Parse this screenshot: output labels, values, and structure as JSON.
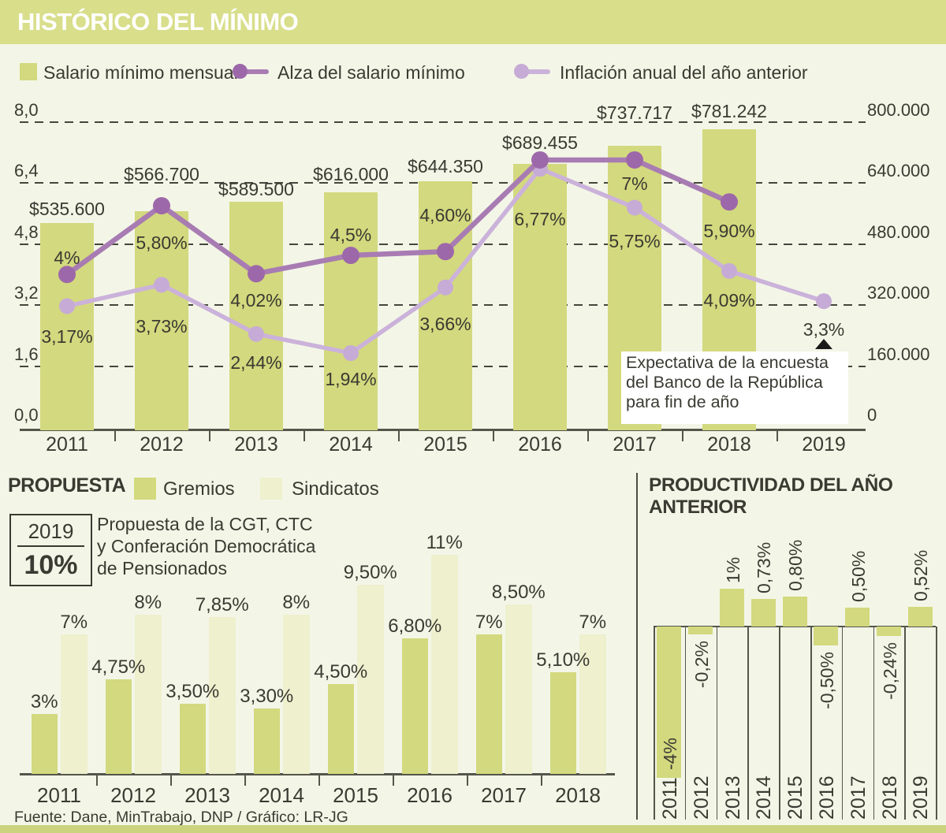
{
  "header": {
    "title": "HISTÓRICO DEL MÍNIMO"
  },
  "legend": {
    "salario": "Salario mínimo mensual",
    "alza": "Alza del salario mínimo",
    "inflacion": "Inflación anual del año anterior"
  },
  "colors": {
    "bar_green": "#d3d97e",
    "bar_pale": "#eef0ce",
    "header_bg": "#d8de8a",
    "background": "#f3f6e7",
    "alza_line": "#a87cb3",
    "alza_dot": "#9d68a9",
    "inflacion_line": "#cbb2da",
    "inflacion_dot": "#c6abd6",
    "text": "#3a3a32",
    "axis": "#55554b",
    "annotation_bg": "#ffffff",
    "footer_bar": "#cbd47d"
  },
  "propuesta": {
    "title": "PROPUESTA",
    "legend_gremios": "Gremios",
    "legend_sindicatos": "Sindicatos",
    "box_year": "2019",
    "box_pct": "10%",
    "note_lines": [
      "Propuesta de la CGT, CTC",
      "y Conferación Democrática",
      "de Pensionados"
    ]
  },
  "productividad": {
    "title_lines": [
      "PRODUCTIVIDAD DEL AÑO",
      "ANTERIOR"
    ]
  },
  "footer": {
    "source": "Fuente: Dane, MinTrabajo, DNP / Gráfico: LR-JG"
  },
  "chart_data": [
    {
      "id": "historico",
      "type": "bar",
      "title": "HISTÓRICO DEL MÍNIMO",
      "categories": [
        "2011",
        "2012",
        "2013",
        "2014",
        "2015",
        "2016",
        "2017",
        "2018",
        "2019"
      ],
      "legend_position": "top",
      "grid": true,
      "left_axis": {
        "values": [
          8,
          6.4,
          4.8,
          3.2,
          1.6,
          0
        ],
        "labels": [
          "8,0",
          "6,4",
          "4,8",
          "3,2",
          "1,6",
          "0,0"
        ],
        "ylim": [
          0,
          8
        ]
      },
      "right_axis": {
        "values": [
          800000,
          640000,
          480000,
          320000,
          160000,
          0
        ],
        "labels": [
          "800.000",
          "640.000",
          "480.000",
          "320.000",
          "160.000",
          "0"
        ],
        "ylim": [
          0,
          800000
        ]
      },
      "series": [
        {
          "name": "Salario mínimo mensual",
          "type": "bar",
          "axis": "right",
          "values": [
            535600,
            566700,
            589500,
            616000,
            644350,
            689455,
            737717,
            781242,
            null
          ],
          "labels": [
            "$535.600",
            "$566.700",
            "$589.500",
            "$616.000",
            "$644.350",
            "$689.455",
            "$737.717",
            "$781.242",
            null
          ],
          "label_y": [
            252,
            208,
            227,
            208,
            198,
            168,
            130,
            128,
            null
          ]
        },
        {
          "name": "Alza del salario mínimo",
          "type": "line",
          "axis": "left",
          "values": [
            4,
            5.8,
            4.02,
            4.5,
            4.6,
            7,
            7,
            5.9,
            null
          ],
          "labels": [
            "4%",
            "5,80%",
            "4,02%",
            "4,5%",
            "4,60%",
            null,
            "7%",
            "5,90%",
            null
          ],
          "label_pos": [
            "above",
            "below",
            "below",
            "above",
            "above",
            null,
            "below",
            "below",
            null
          ],
          "label_dy": [
            11,
            34,
            21,
            16,
            36,
            null,
            17,
            24,
            null
          ]
        },
        {
          "name": "Inflación anual del año anterior",
          "type": "line",
          "axis": "left",
          "values": [
            3.17,
            3.73,
            2.44,
            1.94,
            3.66,
            6.77,
            5.75,
            4.09,
            3.3
          ],
          "labels": [
            "3,17%",
            "3,73%",
            "2,44%",
            "1,94%",
            "3,66%",
            "6,77%",
            "5,75%",
            "4,09%",
            "3,3%"
          ],
          "label_pos": [
            "below",
            "below",
            "below",
            "below",
            "below",
            "below",
            "below",
            "below",
            "below"
          ],
          "label_dy": [
            26,
            40,
            23,
            20,
            33,
            51,
            30,
            24,
            23
          ]
        }
      ],
      "annotation": {
        "lines": [
          "Expectativa de la encuesta",
          "del Banco de la República",
          "para fin de año"
        ],
        "marker": "triangle-up"
      }
    },
    {
      "id": "propuesta",
      "type": "bar",
      "title": "PROPUESTA",
      "categories": [
        "2011",
        "2012",
        "2013",
        "2014",
        "2015",
        "2016",
        "2017",
        "2018"
      ],
      "ylim": [
        0,
        14
      ],
      "series": [
        {
          "name": "Gremios",
          "values": [
            3,
            4.75,
            3.5,
            3.3,
            4.5,
            6.8,
            7,
            5.1
          ],
          "labels": [
            "3%",
            "4,75%",
            "3,50%",
            "3,30%",
            "4,50%",
            "6,80%",
            "7%",
            "5,10%"
          ]
        },
        {
          "name": "Sindicatos",
          "values": [
            7,
            8,
            7.85,
            8,
            9.5,
            11,
            8.5,
            7
          ],
          "labels": [
            "7%",
            "8%",
            "7,85%",
            "8%",
            "9,50%",
            "11%",
            "8,50%",
            "7%"
          ]
        }
      ],
      "extra": {
        "year": "2019",
        "value": 10,
        "label": "10%"
      }
    },
    {
      "id": "productividad",
      "type": "bar",
      "title": "PRODUCTIVIDAD DEL AÑO ANTERIOR",
      "categories": [
        "2011",
        "2012",
        "2013",
        "2014",
        "2015",
        "2016",
        "2017",
        "2018",
        "2019"
      ],
      "values": [
        -4,
        -0.2,
        1,
        0.73,
        0.8,
        -0.5,
        0.5,
        -0.24,
        0.52
      ],
      "labels": [
        "-4%",
        "-0,2%",
        "1%",
        "0,73%",
        "0,80%",
        "-0,50%",
        "0,50%",
        "-0,24%",
        "0,52%"
      ],
      "ylim": [
        -4.5,
        1.5
      ]
    }
  ]
}
